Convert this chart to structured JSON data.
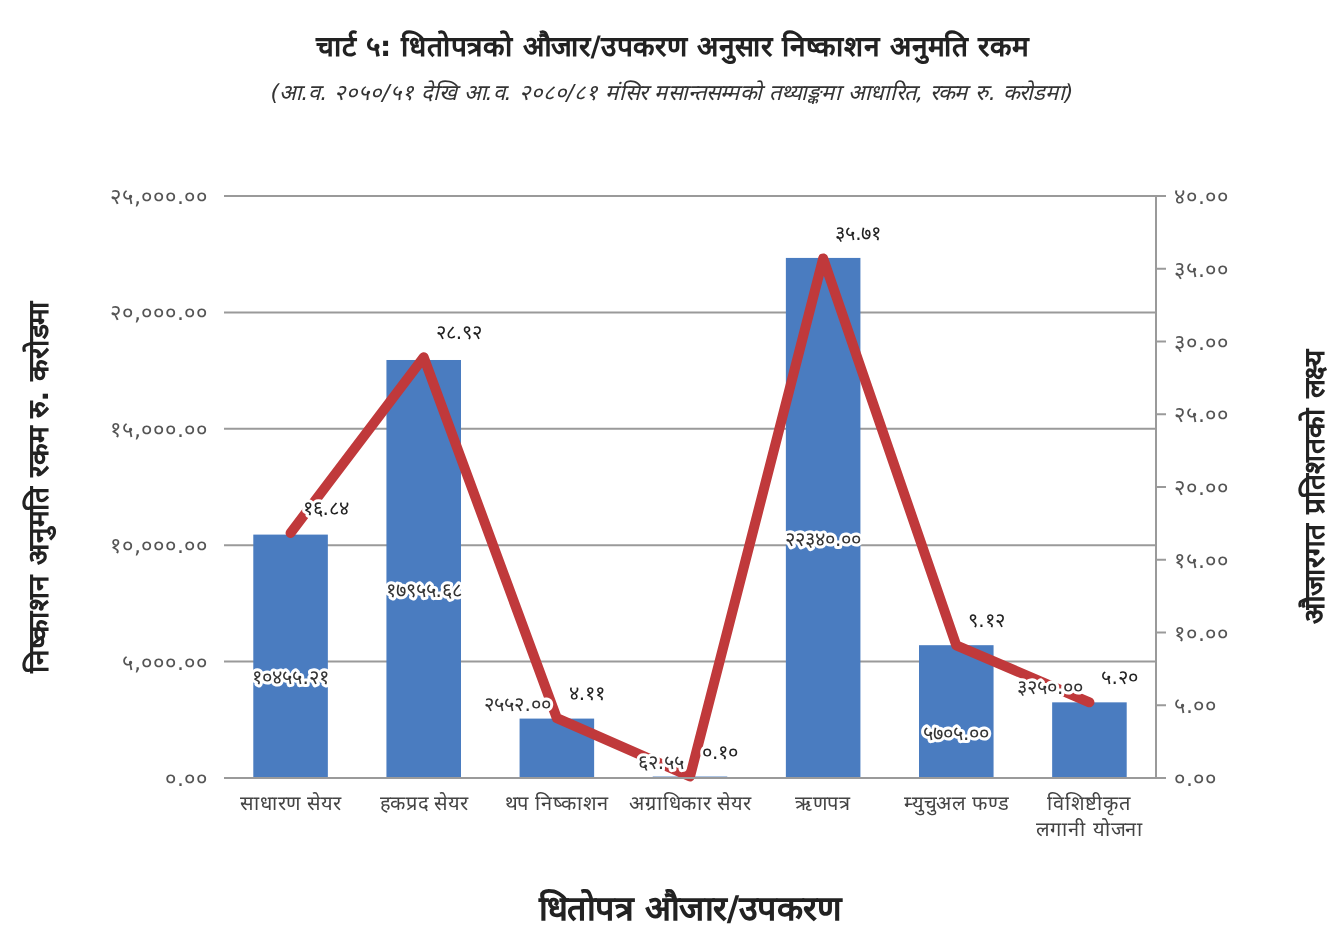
{
  "chart_data": {
    "type": "bar",
    "title": "चार्ट ५: धितोपत्रको औजार/उपकरण अनुसार निष्काशन अनुमति रकम",
    "subtitle": "(आ.व. २०५०/५१ देखि आ.व. २०८०/८१ मंसिर मसान्तसम्मको तथ्याङ्कमा आधारित, रकम रु. करोडमा)",
    "xlabel": "धितोपत्र औजार/उपकरण",
    "ylabel": "निष्काशन अनुमति रकम रु. करोडमा",
    "y2label": "औजारगत प्रतिशतको लक्ष्य",
    "categories": [
      "साधारण सेयर",
      "हकप्रद सेयर",
      "थप निष्काशन",
      "अग्राधिकार सेयर",
      "ऋणपत्र",
      "म्युचुअल फण्ड",
      "विशिष्टीकृत लगानी योजना"
    ],
    "series": [
      {
        "color": "#4a7cc0",
        "values": [
          10455.21,
          17955.68,
          2552.0,
          62.55,
          22340.0,
          5705.0,
          3250.0
        ],
        "value_labels": [
          "१०४५५.२१",
          "१७९५५.६८",
          "२५५२.००",
          "६२.५५",
          "२२३४०.००",
          "५७०५.००",
          "३२५०.००"
        ]
      },
      {
        "type": "line",
        "axis": "y2",
        "color": "#c0393b",
        "values": [
          16.84,
          28.92,
          4.11,
          0.1,
          35.71,
          9.12,
          5.2
        ],
        "value_labels": [
          "१६.८४",
          "२८.९२",
          "४.११",
          "०.१०",
          "३५.७१",
          "९.१२",
          "५.२०"
        ]
      }
    ],
    "ylim": [
      0,
      25000
    ],
    "yticks": [
      {
        "value": 0,
        "label": "०.००"
      },
      {
        "value": 5000,
        "label": "५,०००.००"
      },
      {
        "value": 10000,
        "label": "१०,०००.००"
      },
      {
        "value": 15000,
        "label": "१५,०००.००"
      },
      {
        "value": 20000,
        "label": "२०,०००.००"
      },
      {
        "value": 25000,
        "label": "२५,०००.००"
      }
    ],
    "y2lim": [
      0,
      40
    ],
    "y2ticks": [
      {
        "value": 0,
        "label": "०.००"
      },
      {
        "value": 5,
        "label": "५.००"
      },
      {
        "value": 10,
        "label": "१०.००"
      },
      {
        "value": 15,
        "label": "१५.००"
      },
      {
        "value": 20,
        "label": "२०.००"
      },
      {
        "value": 25,
        "label": "२५.००"
      },
      {
        "value": 30,
        "label": "३०.००"
      },
      {
        "value": 35,
        "label": "३५.००"
      },
      {
        "value": 40,
        "label": "४०.००"
      }
    ],
    "grid": "y"
  }
}
